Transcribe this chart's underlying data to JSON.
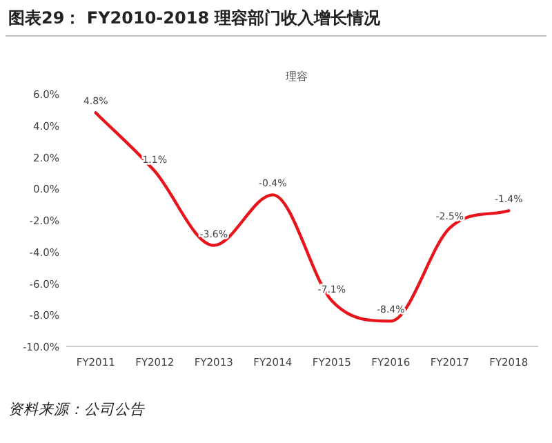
{
  "chart_data": {
    "type": "line",
    "title": "图表29： FY2010-2018 理容部门收入增长情况",
    "subtitle": "理容",
    "categories": [
      "FY2011",
      "FY2012",
      "FY2013",
      "FY2014",
      "FY2015",
      "FY2016",
      "FY2017",
      "FY2018"
    ],
    "series": [
      {
        "color": "#e8141b",
        "values": [
          4.8,
          1.1,
          -3.6,
          -0.4,
          -7.1,
          -8.4,
          -2.5,
          -1.4
        ]
      }
    ],
    "ylim": [
      -10,
      6
    ],
    "yticks": [
      {
        "value": -10,
        "label": "-10.0%"
      },
      {
        "value": -8,
        "label": "-8.0%"
      },
      {
        "value": -6,
        "label": "-6.0%"
      },
      {
        "value": -4,
        "label": "-4.0%"
      },
      {
        "value": -2,
        "label": "-2.0%"
      },
      {
        "value": 0,
        "label": "0.0%"
      },
      {
        "value": 2,
        "label": "2.0%"
      },
      {
        "value": 4,
        "label": "4.0%"
      },
      {
        "value": 6,
        "label": "6.0%"
      }
    ],
    "value_labels": [
      "4.8%",
      "1.1%",
      "-3.6%",
      "-0.4%",
      "-7.1%",
      "-8.4%",
      "-2.5%",
      "-1.4%"
    ],
    "marker": "none",
    "line_style": "solid",
    "grid": false,
    "annotations": [
      "资料来源：公司公告"
    ]
  }
}
